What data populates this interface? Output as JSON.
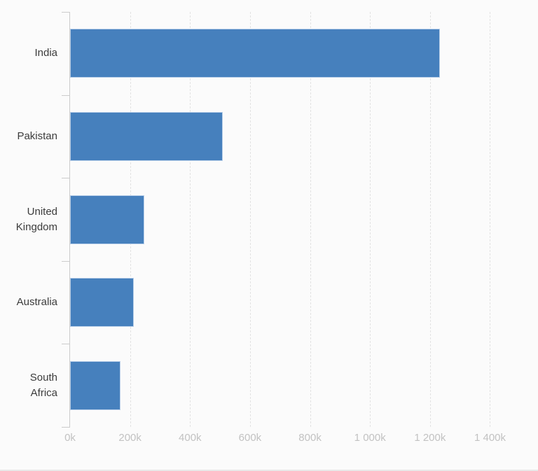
{
  "window": {
    "background_color": "#fbfbfb",
    "bottom_edge_color": "#e9e9e9"
  },
  "chart_data": {
    "type": "bar",
    "orientation": "horizontal",
    "title": "",
    "subtitle": "",
    "xlabel": "",
    "ylabel": "",
    "legend": "none",
    "grid": "vertical-dashed",
    "categories": [
      "India",
      "Pakistan",
      "United Kingdom",
      "Australia",
      "South Africa"
    ],
    "values": [
      1234000,
      508000,
      247000,
      212000,
      169000
    ],
    "xlim": [
      0,
      1560000
    ],
    "x_tick_interval": 200000,
    "x_tick_labels": [
      "0k",
      "200k",
      "400k",
      "600k",
      "800k",
      "1 000k",
      "1 200k",
      "1 400k"
    ],
    "bar_color": "#4680bd",
    "bar_border_color": "#b9cfe9",
    "axis_color": "#cccccc",
    "grid_color": "#e2e2e2",
    "tick_label_color": "#c2c2c2",
    "category_label_color": "#3b3b3b"
  }
}
